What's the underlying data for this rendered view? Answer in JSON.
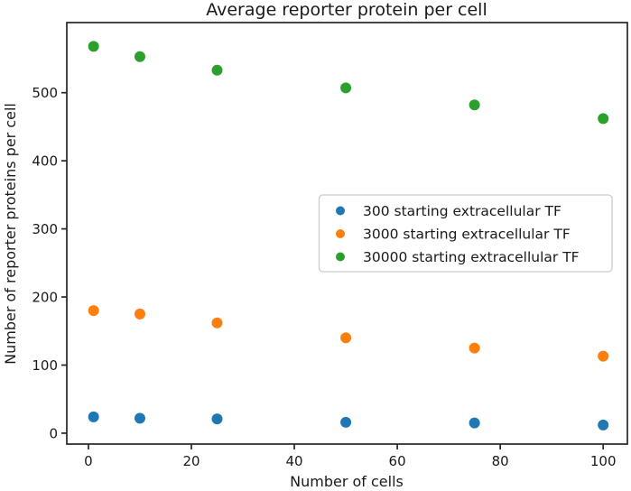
{
  "chart_data": {
    "type": "scatter",
    "title": "Average reporter protein per cell",
    "xlabel": "Number of cells",
    "ylabel": "Number of reporter proteins per cell",
    "x": [
      1,
      10,
      25,
      50,
      75,
      100
    ],
    "series": [
      {
        "name": "300 starting extracellular TF",
        "color": "#1f77b4",
        "values": [
          24,
          22,
          21,
          16,
          15,
          12
        ]
      },
      {
        "name": "3000 starting extracellular TF",
        "color": "#ff7f0e",
        "values": [
          180,
          175,
          162,
          140,
          125,
          113
        ]
      },
      {
        "name": "30000 starting extracellular TF",
        "color": "#2ca02c",
        "values": [
          568,
          553,
          533,
          507,
          482,
          462
        ]
      }
    ],
    "xticks": [
      0,
      20,
      40,
      60,
      80,
      100
    ],
    "yticks": [
      0,
      100,
      200,
      300,
      400,
      500
    ],
    "xlim": [
      -4.2,
      104.7
    ],
    "ylim": [
      -16,
      603
    ],
    "grid": false,
    "legend_position": "center-right-inside",
    "marker_radius": 6,
    "legend_marker_radius": 5,
    "axis_color": "#262626",
    "text_color": "#1a1a1a",
    "legend_border_color": "#cccccc",
    "background_color": "#ffffff"
  }
}
